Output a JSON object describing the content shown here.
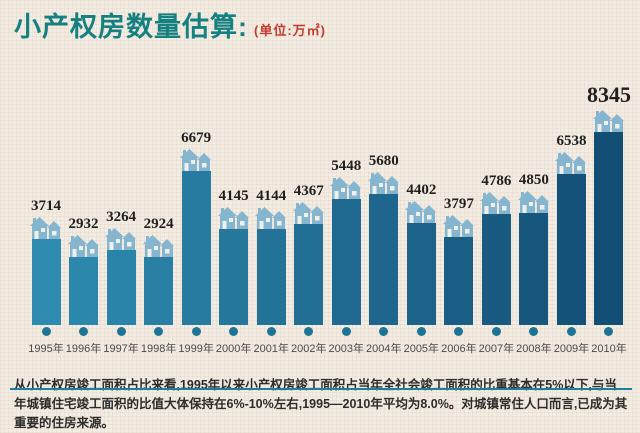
{
  "header": {
    "title": "小产权房数量估算:",
    "unit": "(单位:万㎡)"
  },
  "chart_data": {
    "type": "bar",
    "title": "小产权房数量估算",
    "unit_label": "万㎡",
    "categories": [
      "1995年",
      "1996年",
      "1997年",
      "1998年",
      "1999年",
      "2000年",
      "2001年",
      "2002年",
      "2003年",
      "2004年",
      "2005年",
      "2006年",
      "2007年",
      "2008年",
      "2009年",
      "2010年"
    ],
    "values": [
      3714,
      2932,
      3264,
      2924,
      6679,
      4145,
      4144,
      4367,
      5448,
      5680,
      4402,
      3797,
      4786,
      4850,
      6538,
      8345
    ],
    "ylim": [
      0,
      9000
    ],
    "grid": false,
    "legend": "none",
    "bar_colors": [
      "#2e8bb0",
      "#2c87ac",
      "#2a83a8",
      "#297fa4",
      "#277ba0",
      "#25779c",
      "#237398",
      "#216f94",
      "#206a91",
      "#1e668d",
      "#1c6289",
      "#1a5e85",
      "#195a81",
      "#17567d",
      "#155279",
      "#134e75"
    ],
    "house_icon_color": "#86b6cf",
    "house_window_color": "#eef0ea",
    "axis_color": "#1e7e9e"
  },
  "footer": {
    "text": "从小产权房竣工面积占比来看,1995年以来小产权房竣工面积占当年全社会竣工面积的比重基本在5%以下,与当年城镇住宅竣工面积的比值大体保持在6%-10%左右,1995—2010年平均为8.0%。对城镇常住人口而言,已成为其重要的住房来源。"
  },
  "colors": {
    "background": "#f2ece2",
    "title": "#158080",
    "unit": "#c23b2e",
    "value_label": "#1f1f1f",
    "year_label": "#4a4a4a"
  }
}
